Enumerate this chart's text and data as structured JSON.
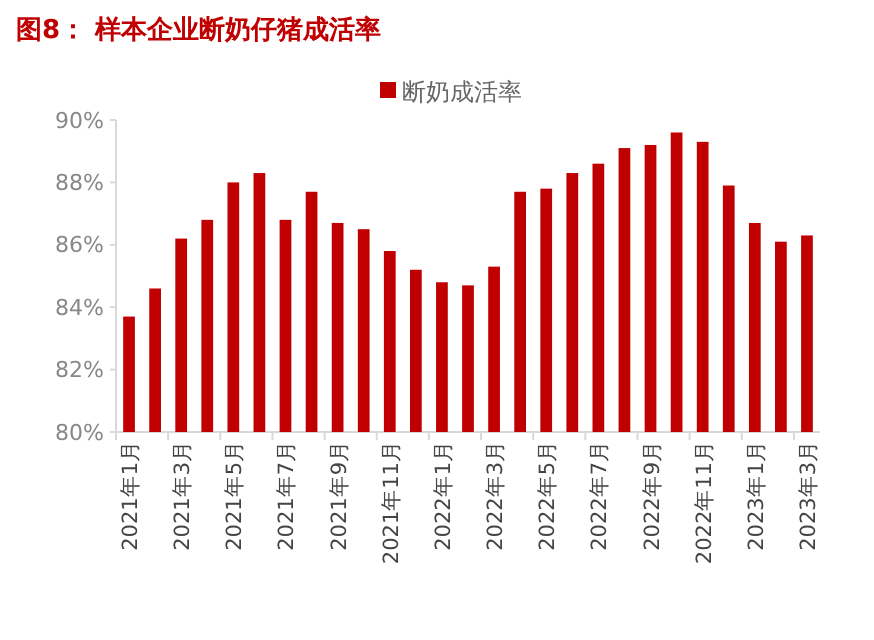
{
  "chart_data": {
    "type": "bar",
    "title": "图8：  样本企业断奶仔猪成活率",
    "categories": [
      "2021年1月",
      null,
      "2021年3月",
      null,
      "2021年5月",
      null,
      "2021年7月",
      null,
      "2021年9月",
      null,
      "2021年11月",
      null,
      "2022年1月",
      null,
      "2022年3月",
      null,
      "2022年5月",
      null,
      "2022年7月",
      null,
      "2022年9月",
      null,
      "2022年11月",
      null,
      "2023年1月",
      null,
      "2023年3月"
    ],
    "series": [
      {
        "name": "断奶成活率",
        "color": "#c00000",
        "values": [
          83.7,
          84.6,
          86.2,
          86.8,
          88.0,
          88.3,
          86.8,
          87.7,
          86.7,
          86.5,
          85.8,
          85.2,
          84.8,
          84.7,
          85.3,
          87.7,
          87.8,
          88.3,
          88.6,
          89.1,
          89.2,
          89.6,
          89.3,
          87.9,
          86.7,
          86.1,
          86.3
        ]
      }
    ],
    "ylim": [
      80,
      90
    ],
    "yticks": [
      {
        "value": 80,
        "label": "80%"
      },
      {
        "value": 82,
        "label": "82%"
      },
      {
        "value": 84,
        "label": "84%"
      },
      {
        "value": 86,
        "label": "86%"
      },
      {
        "value": 88,
        "label": "88%"
      },
      {
        "value": 90,
        "label": "90%"
      }
    ],
    "grid": false,
    "legend": "top"
  }
}
